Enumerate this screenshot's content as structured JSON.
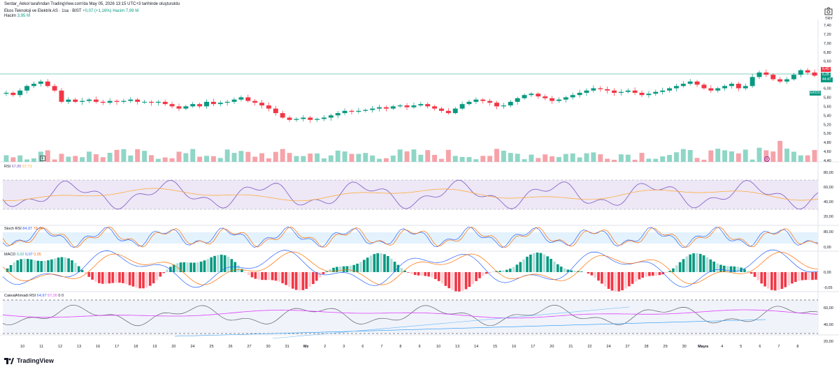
{
  "header": {
    "publish_line": "Serdar_Akkol tarafından TradingView.com'da May 05, 2026 13:15 UTC+3 tarihinde oluşturuldu",
    "symbol": "Ekos Teknoloji ve Elektrik AS · 1sa · BIST",
    "change": "+0,07 (+1,16%)",
    "symbol_extra": "Hacim 7,99 M",
    "volume_label": "Hacim",
    "volume_value": "3,95 M"
  },
  "price_axis": {
    "currency": "TRY",
    "ticks": [
      "7,40",
      "7,20",
      "7,00",
      "6,80",
      "6,60",
      "6,40",
      "6,20",
      "6,00",
      "5,80",
      "5,60",
      "5,40",
      "5,20",
      "5,00",
      "4,80",
      "4,60",
      "4,40"
    ],
    "last_label": "EKOS",
    "last_price": "6,28",
    "last_time": "44:47",
    "high_tag": "6,40"
  },
  "indicators": {
    "rsi": {
      "label": "RSI",
      "v1": "67,85",
      "v2": "57,71",
      "ticks": [
        "80,00",
        "60,00",
        "40,00",
        "20,00"
      ]
    },
    "stoch": {
      "label": "Stoch RSI",
      "v1": "84,97",
      "v2": "79,43",
      "ticks": [
        "80,00",
        "0,00"
      ]
    },
    "macd": {
      "label": "MACD",
      "v1": "0,02",
      "v2": "0,07",
      "v3": "0,05",
      "ticks": [
        "0,00",
        "-0,05"
      ]
    },
    "ctx": {
      "label": "CatealAhmadi RSI",
      "v1": "64,97",
      "v2": "57,26",
      "v3": "0",
      "v4": "0",
      "ticks": [
        "60,00",
        "40,00",
        "20,00"
      ]
    }
  },
  "time_axis": [
    "10",
    "11",
    "12",
    "13",
    "16",
    "17",
    "18",
    "19",
    "20",
    "24",
    "25",
    "26",
    "27",
    "30",
    "31",
    "Mz",
    "2",
    "3",
    "6",
    "7",
    "8",
    "9",
    "10",
    "13",
    "14",
    "15",
    "16",
    "17",
    "20",
    "21",
    "22",
    "24",
    "27",
    "28",
    "29",
    "30",
    "Mayıs",
    "4",
    "5",
    "6",
    "7",
    "8"
  ],
  "footer": {
    "brand": "TradingView"
  },
  "colors": {
    "up": "#089981",
    "down": "#f23645",
    "vol_up": "#8fd6c6",
    "vol_down": "#f5a3a9",
    "rsi": "#7e57c2",
    "signal": "#ffa726",
    "macd_line": "#2962ff",
    "band": "#ede7f6"
  },
  "chart_data": {
    "type": "candlestick",
    "title": "Ekos Teknoloji ve Elektrik AS · 1sa · BIST",
    "ylim": [
      4.4,
      7.4
    ],
    "close": [
      5.9,
      5.85,
      5.95,
      6.05,
      6.1,
      6.15,
      6.05,
      5.95,
      5.7,
      5.75,
      5.7,
      5.72,
      5.75,
      5.7,
      5.68,
      5.72,
      5.7,
      5.72,
      5.75,
      5.7,
      5.7,
      5.68,
      5.7,
      5.65,
      5.6,
      5.55,
      5.6,
      5.65,
      5.6,
      5.7,
      5.65,
      5.68,
      5.7,
      5.75,
      5.8,
      5.72,
      5.68,
      5.62,
      5.55,
      5.45,
      5.35,
      5.3,
      5.32,
      5.35,
      5.3,
      5.32,
      5.35,
      5.4,
      5.45,
      5.5,
      5.48,
      5.5,
      5.52,
      5.55,
      5.58,
      5.55,
      5.6,
      5.62,
      5.58,
      5.62,
      5.65,
      5.6,
      5.55,
      5.5,
      5.45,
      5.55,
      5.65,
      5.7,
      5.75,
      5.72,
      5.68,
      5.6,
      5.62,
      5.7,
      5.78,
      5.85,
      5.88,
      5.82,
      5.78,
      5.72,
      5.75,
      5.8,
      5.85,
      5.9,
      5.95,
      6.0,
      5.98,
      5.95,
      5.9,
      5.92,
      5.95,
      5.9,
      5.85,
      5.88,
      5.92,
      5.95,
      6.0,
      6.05,
      6.1,
      6.15,
      6.08,
      6.0,
      5.95,
      6.0,
      6.05,
      6.1,
      6.0,
      6.05,
      6.25,
      6.35,
      6.3,
      6.2,
      6.15,
      6.2,
      6.3,
      6.4,
      6.35,
      6.28
    ]
  }
}
